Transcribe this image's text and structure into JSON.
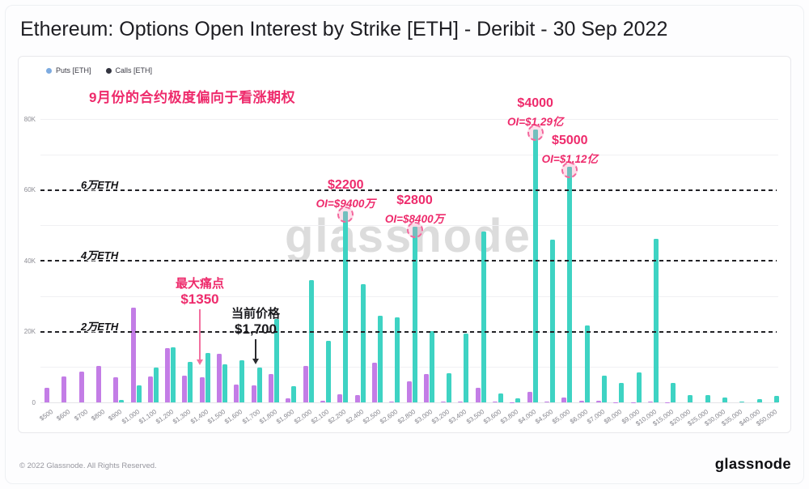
{
  "page": {
    "title": "Ethereum: Options Open Interest by Strike [ETH] - Deribit - 30 Sep 2022",
    "watermark": "glassnode",
    "footer": {
      "copyright": "© 2022 Glassnode. All Rights Reserved.",
      "logo": "glassnode"
    }
  },
  "chart_data": {
    "type": "bar",
    "title": "Ethereum: Options Open Interest by Strike [ETH] - Deribit - 30 Sep 2022",
    "xlabel": "Strike",
    "ylabel": "Open Interest [ETH]",
    "ylim_k_eth": [
      0,
      84
    ],
    "grid": "light horizontal lines every 10K",
    "legend_position": "top-left",
    "y_ticks": [
      {
        "value": 0,
        "label": "0"
      },
      {
        "value": 20,
        "label": "20K"
      },
      {
        "value": 40,
        "label": "40K"
      },
      {
        "value": 60,
        "label": "60K"
      },
      {
        "value": 80,
        "label": "80K"
      }
    ],
    "categories": [
      "$500",
      "$600",
      "$700",
      "$800",
      "$900",
      "$1,000",
      "$1,100",
      "$1,200",
      "$1,300",
      "$1,400",
      "$1,500",
      "$1,600",
      "$1,700",
      "$1,800",
      "$1,900",
      "$2,000",
      "$2,100",
      "$2,200",
      "$2,400",
      "$2,500",
      "$2,600",
      "$2,800",
      "$3,000",
      "$3,200",
      "$3,400",
      "$3,500",
      "$3,600",
      "$3,800",
      "$4,000",
      "$4,500",
      "$5,000",
      "$6,000",
      "$7,000",
      "$8,000",
      "$9,000",
      "$10,000",
      "$15,000",
      "$20,000",
      "$25,000",
      "$30,000",
      "$35,000",
      "$40,000",
      "$50,000"
    ],
    "series": [
      {
        "name": "Puts [ETH]",
        "bar_color": "#c37de6",
        "legend_dot_color": "#7dabe0",
        "values_k_eth": [
          4.1,
          7.3,
          8.8,
          10.3,
          7.1,
          26.8,
          7.3,
          15.3,
          7.5,
          7.1,
          13.7,
          5.0,
          4.8,
          8.0,
          1.1,
          10.3,
          0.5,
          2.3,
          2.0,
          11.2,
          0.3,
          6.0,
          8.0,
          0.2,
          0.3,
          4.1,
          0.2,
          0.1,
          3.0,
          0.2,
          1.4,
          0.4,
          0.4,
          0.1,
          0.1,
          0.2,
          0.1,
          0,
          0,
          0,
          0,
          0,
          0
        ]
      },
      {
        "name": "Calls [ETH]",
        "bar_color": "#3ed3c3",
        "legend_dot_color": "#33343f",
        "values_k_eth": [
          0,
          0,
          0,
          0,
          0.7,
          4.8,
          9.8,
          15.6,
          11.4,
          14.0,
          10.8,
          11.9,
          9.8,
          23.5,
          4.6,
          34.6,
          17.4,
          54.0,
          33.4,
          24.5,
          24.0,
          49.5,
          20.1,
          8.2,
          19.4,
          48.3,
          2.5,
          1.1,
          77.0,
          46.0,
          66.5,
          21.7,
          7.6,
          5.5,
          8.5,
          46.2,
          5.5,
          2.0,
          2.0,
          1.4,
          0.3,
          0.9,
          1.8
        ]
      }
    ]
  },
  "annotations": {
    "accent_pink": "#ee2b6c",
    "arrow_pink": "#f26f9f",
    "skew_note": "9月份的合约极度偏向于看涨期权",
    "reference_lines": [
      {
        "label": "2万ETH",
        "value_k": 20
      },
      {
        "label": "4万ETH",
        "value_k": 40
      },
      {
        "label": "6万ETH",
        "value_k": 60
      }
    ],
    "max_pain": {
      "line1": "最大痛点",
      "line2": "$1350"
    },
    "current_price": {
      "line1": "当前价格",
      "line2": "$1,700"
    },
    "callouts": [
      {
        "strike": "$2,200",
        "strike_label": "$2200",
        "oi_label": "OI=$9400万"
      },
      {
        "strike": "$2,800",
        "strike_label": "$2800",
        "oi_label": "OI=$8400万"
      },
      {
        "strike": "$4,000",
        "strike_label": "$4000",
        "oi_label": "OI=$1.29亿"
      },
      {
        "strike": "$5,000",
        "strike_label": "$5000",
        "oi_label": "OI=$1.12亿"
      }
    ]
  }
}
